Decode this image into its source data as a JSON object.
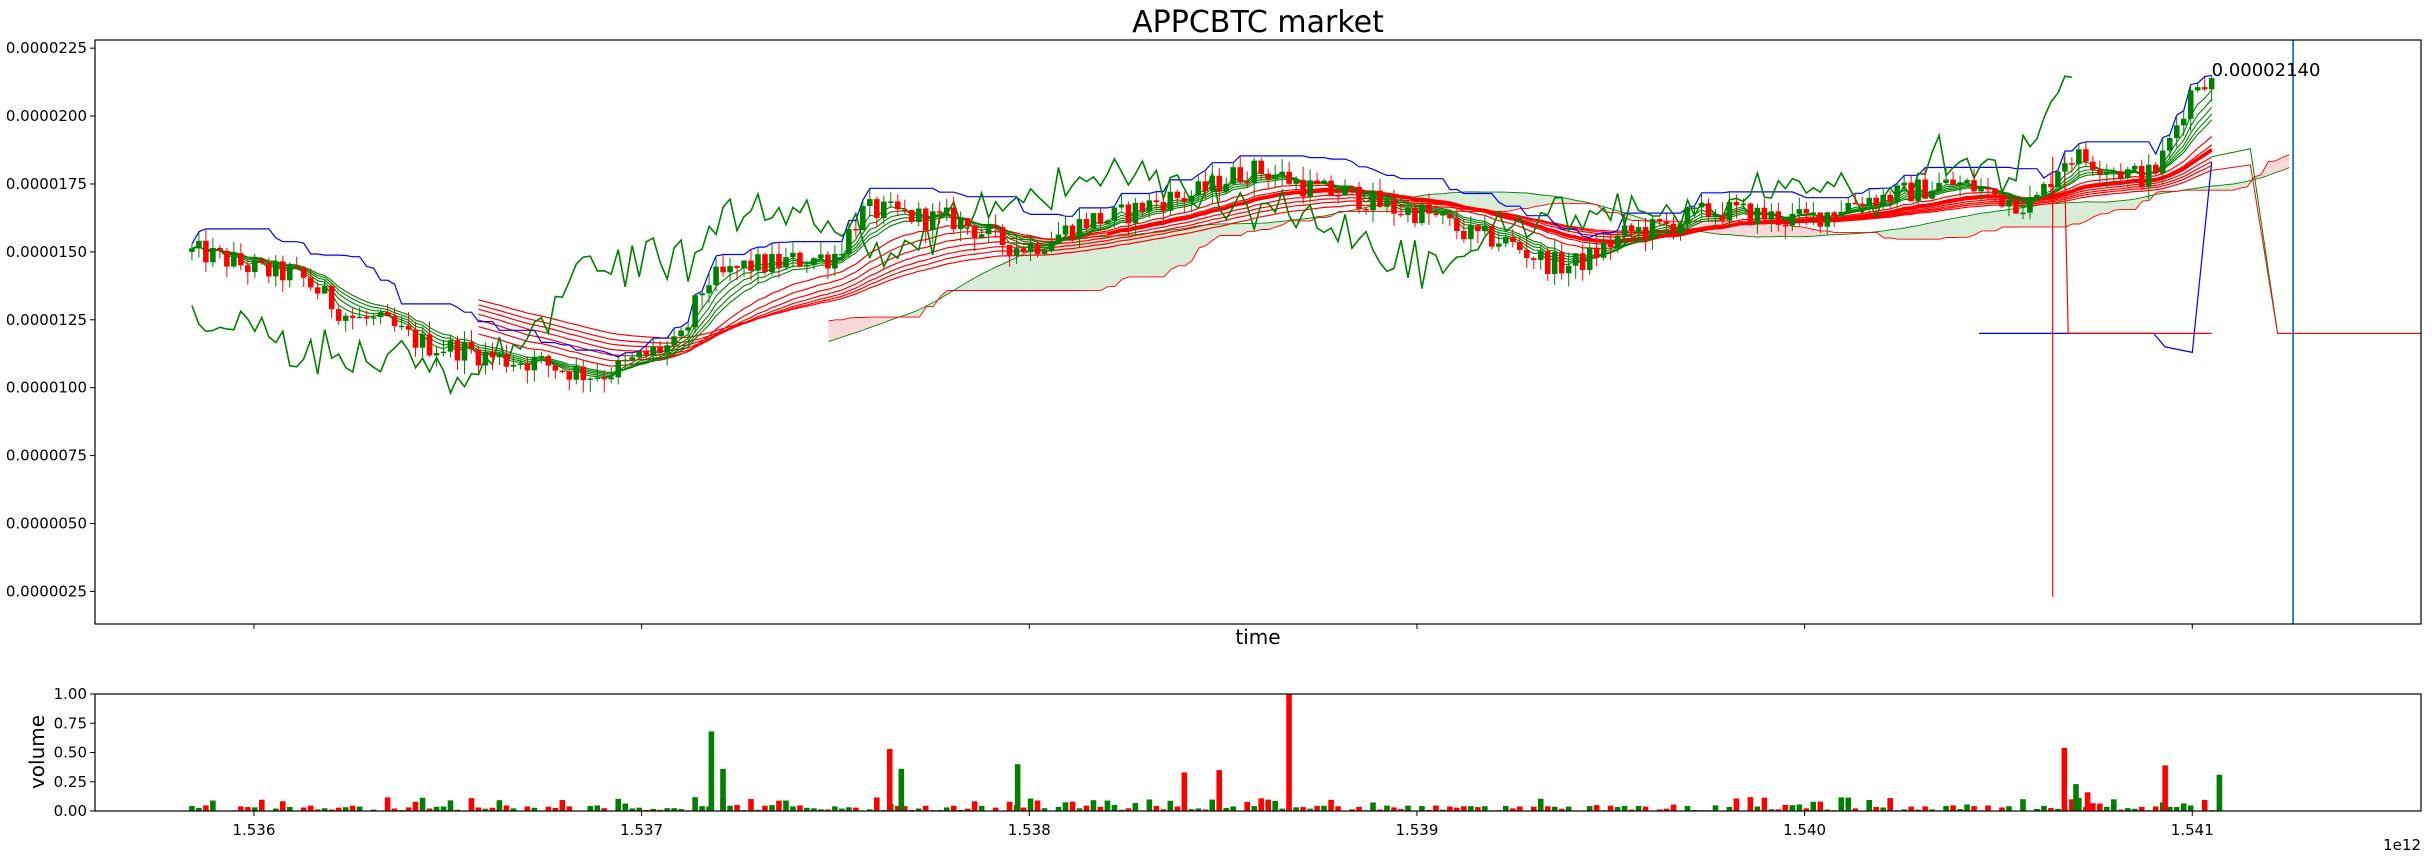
{
  "chart_data": {
    "type": "candlestick",
    "title": "APPCBTC market",
    "xlabel": "time",
    "ylabel_volume": "volume",
    "x_offset_label": "1e12",
    "x_tick_labels": [
      "1.536",
      "1.537",
      "1.538",
      "1.539",
      "1.540",
      "1.541"
    ],
    "x_ticks": [
      1.536,
      1.537,
      1.538,
      1.539,
      1.54,
      1.541
    ],
    "xlim": [
      1.53559,
      1.54159
    ],
    "price": {
      "ylim": [
        1.3e-06,
        2.28e-05
      ],
      "y_ticks": [
        2.5e-06,
        5e-06,
        7.5e-06,
        1e-05,
        1.25e-05,
        1.5e-05,
        1.75e-05,
        2e-05,
        2.25e-05
      ],
      "y_tick_labels": [
        "0.0000025",
        "0.0000050",
        "0.0000075",
        "0.0000100",
        "0.0000125",
        "0.0000150",
        "0.0000175",
        "0.0000200",
        "0.0000225"
      ]
    },
    "volume": {
      "ylim": [
        0,
        1.0
      ],
      "y_ticks": [
        0,
        0.25,
        0.5,
        0.75,
        1.0
      ],
      "y_tick_labels": [
        "0.00",
        "0.25",
        "0.50",
        "0.75",
        "1.00"
      ]
    },
    "last_price_annotation": "0.00002140",
    "current_time_marker_x": 1.54126,
    "colors": {
      "up": "#008000",
      "down": "#ff0000",
      "blue_line": "#0000ff",
      "cloud_green": "#d8ecd8",
      "cloud_red": "#f8d8d8",
      "marker": "#1f77b4"
    },
    "price_anchors": {
      "x": [
        1.53584,
        1.5361,
        1.5363,
        1.5365,
        1.5367,
        1.5369,
        1.5371,
        1.5372,
        1.5373,
        1.5375,
        1.5376,
        1.5378,
        1.538,
        1.5382,
        1.5384,
        1.5386,
        1.5388,
        1.539,
        1.5392,
        1.5394,
        1.5396,
        1.5398,
        1.54,
        1.5402,
        1.5404,
        1.5406,
        1.5407,
        1.5409,
        1.54105
      ],
      "y": [
        1.5e-05,
        1.42e-05,
        1.25e-05,
        1.15e-05,
        1.1e-05,
        1.05e-05,
        1.15e-05,
        1.4e-05,
        1.45e-05,
        1.48e-05,
        1.65e-05,
        1.62e-05,
        1.52e-05,
        1.62e-05,
        1.7e-05,
        1.8e-05,
        1.72e-05,
        1.65e-05,
        1.55e-05,
        1.45e-05,
        1.58e-05,
        1.65e-05,
        1.62e-05,
        1.7e-05,
        1.75e-05,
        1.68e-05,
        1.85e-05,
        1.78e-05,
        2.14e-05
      ]
    },
    "volume_spikes": [
      {
        "x": 1.53718,
        "v": 0.68
      },
      {
        "x": 1.53721,
        "v": 0.36
      },
      {
        "x": 1.53764,
        "v": 0.53
      },
      {
        "x": 1.53767,
        "v": 0.36
      },
      {
        "x": 1.53797,
        "v": 0.4
      },
      {
        "x": 1.5384,
        "v": 0.33
      },
      {
        "x": 1.53849,
        "v": 0.35
      },
      {
        "x": 1.53867,
        "v": 1.0
      },
      {
        "x": 1.54067,
        "v": 0.54
      },
      {
        "x": 1.5407,
        "v": 0.23
      },
      {
        "x": 1.54073,
        "v": 0.16
      },
      {
        "x": 1.54093,
        "v": 0.39
      },
      {
        "x": 1.54107,
        "v": 0.31
      }
    ]
  }
}
